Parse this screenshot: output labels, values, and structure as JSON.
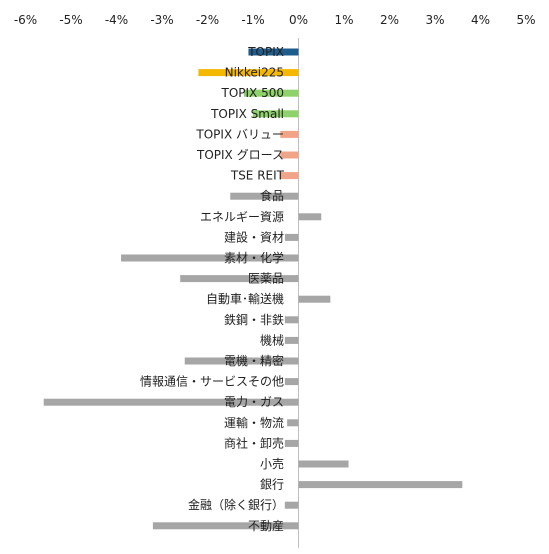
{
  "chart_data": {
    "type": "bar",
    "orientation": "horizontal",
    "x_ticks": [
      "-6%",
      "-5%",
      "-4%",
      "-3%",
      "-2%",
      "-1%",
      "0%",
      "1%",
      "2%",
      "3%",
      "4%",
      "5%"
    ],
    "xlim": [
      -6,
      5
    ],
    "grid": false,
    "legend": "none",
    "categories": [
      "TOPIX",
      "Nikkei225",
      "TOPIX 500",
      "TOPIX Small",
      "TOPIX バリュー",
      "TOPIX グロース",
      "TSE REIT",
      "食品",
      "エネルギー資源",
      "建設・資材",
      "素材・化学",
      "医薬品",
      "自動車･輸送機",
      "鉄鋼・非鉄",
      "機械",
      "電機・精密",
      "情報通信・サービスその他",
      "電力・ガス",
      "運輸・物流",
      "商社・卸売",
      "小売",
      "銀行",
      "金融（除く銀行）",
      "不動産"
    ],
    "values": [
      -1.1,
      -2.2,
      -1.2,
      -1.0,
      -0.4,
      -0.4,
      -0.4,
      -1.5,
      0.5,
      -0.3,
      -3.9,
      -2.6,
      0.7,
      -0.3,
      -0.3,
      -2.5,
      -0.3,
      -5.6,
      -0.25,
      -0.3,
      1.1,
      3.6,
      -0.3,
      -3.2
    ],
    "colors": [
      "#1f5c8b",
      "#f5b800",
      "#8fd16a",
      "#8fd16a",
      "#f2a488",
      "#f2a488",
      "#f2a488",
      "#a6a6a6",
      "#a6a6a6",
      "#a6a6a6",
      "#a6a6a6",
      "#a6a6a6",
      "#a6a6a6",
      "#a6a6a6",
      "#a6a6a6",
      "#a6a6a6",
      "#a6a6a6",
      "#a6a6a6",
      "#a6a6a6",
      "#a6a6a6",
      "#a6a6a6",
      "#a6a6a6",
      "#a6a6a6",
      "#a6a6a6"
    ]
  }
}
